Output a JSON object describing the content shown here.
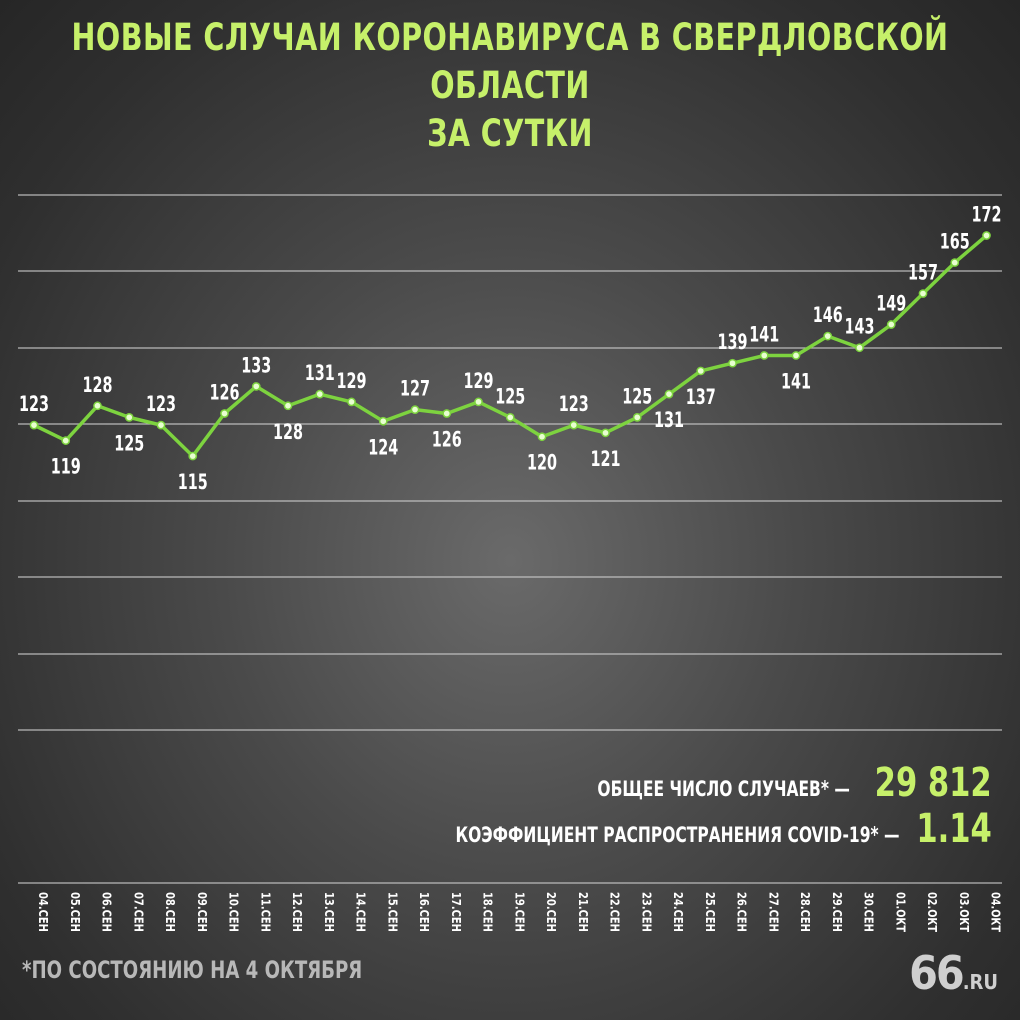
{
  "title_line1": "НОВЫЕ СЛУЧАИ КОРОНАВИРУСА В СВЕРДЛОВСКОЙ ОБЛАСТИ",
  "title_line2": "ЗА СУТКИ",
  "chart_data": {
    "type": "line",
    "categories": [
      "04.СЕН",
      "05.СЕН",
      "06.СЕН",
      "07.СЕН",
      "08.СЕН",
      "09.СЕН",
      "10.СЕН",
      "11.СЕН",
      "12.СЕН",
      "13.СЕН",
      "14.СЕН",
      "15.СЕН",
      "16.СЕН",
      "17.СЕН",
      "18.СЕН",
      "19.СЕН",
      "20.СЕН",
      "21.СЕН",
      "22.СЕН",
      "23.СЕН",
      "24.СЕН",
      "25.СЕН",
      "26.СЕН",
      "27.СЕН",
      "28.СЕН",
      "29.СЕН",
      "30.СЕН",
      "01.ОКТ",
      "02.ОКТ",
      "03.ОКТ",
      "04.ОКТ"
    ],
    "values": [
      123,
      119,
      128,
      125,
      123,
      115,
      126,
      133,
      128,
      131,
      129,
      124,
      127,
      126,
      129,
      125,
      120,
      123,
      121,
      125,
      131,
      137,
      139,
      141,
      141,
      146,
      143,
      149,
      157,
      165,
      172
    ],
    "label_positions": [
      "above",
      "below",
      "above",
      "below",
      "above",
      "below",
      "above",
      "above",
      "below",
      "above",
      "above",
      "below",
      "above",
      "below",
      "above",
      "above",
      "below",
      "above",
      "below",
      "above",
      "below",
      "below",
      "above",
      "above",
      "below",
      "above",
      "above",
      "above",
      "above",
      "above",
      "above"
    ],
    "line_color": "#7dd33f",
    "grid": true
  },
  "stats": {
    "total_label": "ОБЩЕЕ ЧИСЛО СЛУЧАЕВ* —",
    "total_value": "29 812",
    "coef_label": "КОЭФФИЦИЕНТ РАСПРОСТРАНЕНИЯ COVID-19* —",
    "coef_value": "1.14"
  },
  "footnote": "*ПО СОСТОЯНИЮ НА 4 ОКТЯБРЯ",
  "logo": {
    "number": "66",
    "suffix": ".RU"
  },
  "colors": {
    "accent": "#c6f06a",
    "line": "#7dd33f",
    "point": "#e8ffd0"
  }
}
